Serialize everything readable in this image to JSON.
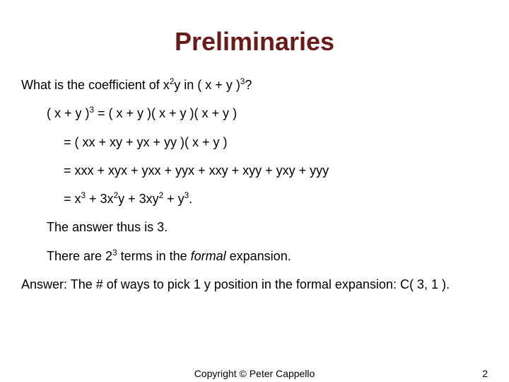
{
  "colors": {
    "title_color": "#6b1a1a",
    "body_color": "#000000",
    "background_color": "#ffffff"
  },
  "typography": {
    "title_fontsize": 36,
    "body_fontsize": 18,
    "footer_fontsize": 14,
    "font_family": "Arial"
  },
  "title": "Preliminaries",
  "lines": [
    {
      "indent": 0,
      "html": "What is the coefficient of x<span class=\"sup\">2</span>y in ( x + y )<span class=\"sup\">3</span>?"
    },
    {
      "indent": 1,
      "html": "( x + y )<span class=\"sup\">3</span> = ( x + y )( x + y )( x + y )"
    },
    {
      "indent": 2,
      "html": "= ( xx + xy + yx + yy )( x + y )"
    },
    {
      "indent": 2,
      "html": "= xxx + xyx + yxx + yyx + xxy + xyy + yxy + yyy"
    },
    {
      "indent": 2,
      "html": "= x<span class=\"sup\">3</span> + 3x<span class=\"sup\">2</span>y + 3xy<span class=\"sup\">2</span> + y<span class=\"sup\">3</span>."
    },
    {
      "indent": 1,
      "html": "The answer thus is 3."
    },
    {
      "indent": 1,
      "html": "There are 2<span class=\"sup\">3</span> terms in the <span class=\"ital\">formal</span> expansion."
    },
    {
      "indent": 0,
      "html": "Answer: The # of ways to pick 1 y position in the formal expansion: C( 3, 1 )."
    }
  ],
  "footer": {
    "copyright": "Copyright © Peter Cappello",
    "page_number": "2"
  }
}
